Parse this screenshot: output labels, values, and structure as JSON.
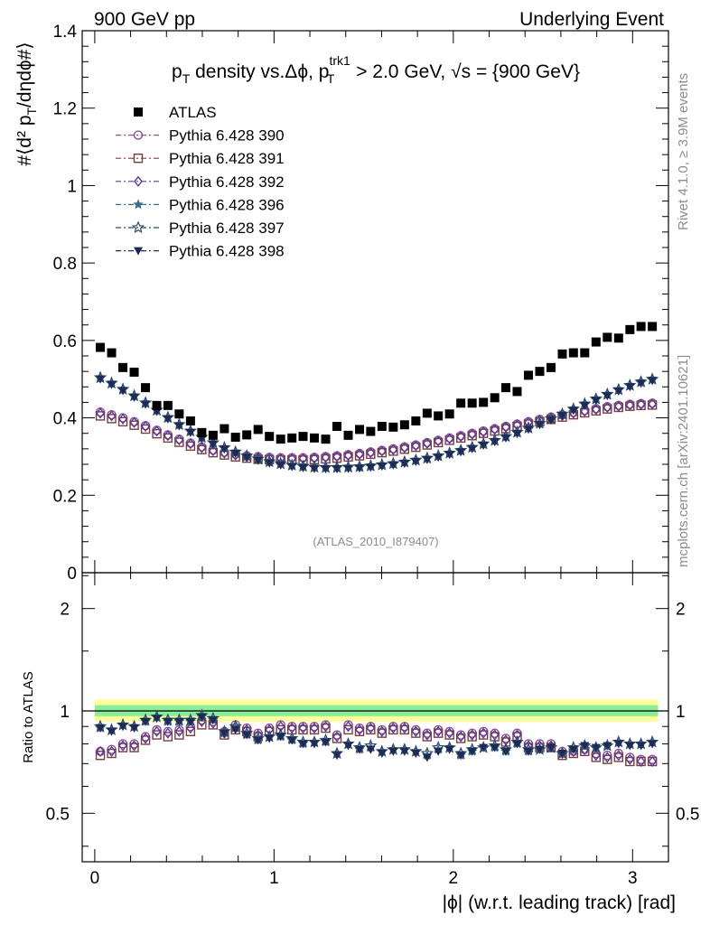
{
  "header": {
    "left": "900 GeV pp",
    "right": "Underlying Event"
  },
  "side_labels": {
    "rivet": "Rivet 4.1.0, ≥ 3.9M events",
    "mcplots": "mcplots.cern.ch [arXiv:2401.10621]"
  },
  "watermark": "(ATLAS_2010_I879407)",
  "title": "p_T density vs.Δϕ, p_T^trk1 > 2.0 GeV, √s = {900 GeV}",
  "chart_data": [
    {
      "type": "scatter",
      "panel": "main",
      "ylabel": "#⟨d² p_T/dηdϕ#⟩",
      "xlim": [
        -0.07,
        3.2
      ],
      "ylim": [
        0,
        1.4
      ],
      "yticks": [
        0,
        0.2,
        0.4,
        0.6,
        0.8,
        1,
        1.2,
        1.4
      ],
      "ytick_labels": [
        "0",
        "0.2",
        "0.4",
        "0.6",
        "0.8",
        "1",
        "1.2",
        "1.4"
      ],
      "legend_position": "top-left",
      "x": [
        0.031,
        0.094,
        0.157,
        0.22,
        0.283,
        0.346,
        0.408,
        0.471,
        0.534,
        0.597,
        0.66,
        0.723,
        0.785,
        0.848,
        0.911,
        0.974,
        1.037,
        1.1,
        1.162,
        1.225,
        1.288,
        1.351,
        1.414,
        1.477,
        1.539,
        1.602,
        1.665,
        1.728,
        1.791,
        1.854,
        1.916,
        1.979,
        2.042,
        2.105,
        2.168,
        2.231,
        2.293,
        2.356,
        2.419,
        2.482,
        2.545,
        2.608,
        2.67,
        2.733,
        2.796,
        2.859,
        2.922,
        2.985,
        3.047,
        3.11
      ],
      "series": [
        {
          "name": "ATLAS",
          "marker": "filled-square",
          "color": "#000000",
          "values": [
            0.582,
            0.568,
            0.53,
            0.518,
            0.478,
            0.432,
            0.432,
            0.41,
            0.392,
            0.362,
            0.355,
            0.372,
            0.35,
            0.356,
            0.37,
            0.352,
            0.345,
            0.348,
            0.352,
            0.348,
            0.345,
            0.378,
            0.355,
            0.37,
            0.365,
            0.378,
            0.376,
            0.382,
            0.392,
            0.412,
            0.405,
            0.41,
            0.438,
            0.438,
            0.44,
            0.452,
            0.478,
            0.468,
            0.51,
            0.52,
            0.53,
            0.565,
            0.568,
            0.568,
            0.596,
            0.608,
            0.606,
            0.628,
            0.636,
            0.636
          ]
        },
        {
          "name": "Pythia 6.428 390",
          "marker": "open-circle",
          "color": "#8e4e9c",
          "values": [
            0.415,
            0.408,
            0.4,
            0.39,
            0.38,
            0.368,
            0.356,
            0.345,
            0.335,
            0.325,
            0.317,
            0.311,
            0.306,
            0.302,
            0.3,
            0.298,
            0.297,
            0.297,
            0.297,
            0.298,
            0.3,
            0.302,
            0.305,
            0.308,
            0.312,
            0.316,
            0.32,
            0.325,
            0.33,
            0.336,
            0.342,
            0.348,
            0.354,
            0.36,
            0.366,
            0.372,
            0.378,
            0.384,
            0.39,
            0.396,
            0.402,
            0.408,
            0.414,
            0.419,
            0.424,
            0.429,
            0.432,
            0.435,
            0.437,
            0.438
          ]
        },
        {
          "name": "Pythia 6.428 391",
          "marker": "open-square",
          "color": "#7a3d3d",
          "values": [
            0.405,
            0.398,
            0.39,
            0.381,
            0.371,
            0.359,
            0.348,
            0.337,
            0.327,
            0.318,
            0.31,
            0.304,
            0.299,
            0.296,
            0.293,
            0.292,
            0.291,
            0.291,
            0.291,
            0.292,
            0.294,
            0.296,
            0.299,
            0.302,
            0.306,
            0.31,
            0.314,
            0.319,
            0.324,
            0.33,
            0.336,
            0.342,
            0.348,
            0.354,
            0.36,
            0.366,
            0.372,
            0.378,
            0.384,
            0.39,
            0.396,
            0.402,
            0.408,
            0.413,
            0.418,
            0.423,
            0.427,
            0.43,
            0.432,
            0.433
          ]
        },
        {
          "name": "Pythia 6.428 392",
          "marker": "open-diamond",
          "color": "#5b3a96",
          "values": [
            0.412,
            0.405,
            0.397,
            0.388,
            0.378,
            0.366,
            0.354,
            0.343,
            0.333,
            0.323,
            0.315,
            0.309,
            0.304,
            0.3,
            0.298,
            0.296,
            0.295,
            0.295,
            0.295,
            0.296,
            0.298,
            0.3,
            0.303,
            0.306,
            0.31,
            0.314,
            0.318,
            0.323,
            0.328,
            0.334,
            0.34,
            0.346,
            0.352,
            0.358,
            0.364,
            0.37,
            0.376,
            0.382,
            0.388,
            0.394,
            0.4,
            0.406,
            0.412,
            0.417,
            0.422,
            0.427,
            0.43,
            0.433,
            0.435,
            0.436
          ]
        },
        {
          "name": "Pythia 6.428 396",
          "marker": "filled-star",
          "color": "#3f6b8e",
          "values": [
            0.502,
            0.488,
            0.472,
            0.455,
            0.437,
            0.418,
            0.399,
            0.381,
            0.364,
            0.348,
            0.334,
            0.321,
            0.31,
            0.3,
            0.292,
            0.285,
            0.28,
            0.276,
            0.273,
            0.271,
            0.27,
            0.27,
            0.271,
            0.272,
            0.274,
            0.277,
            0.28,
            0.284,
            0.289,
            0.294,
            0.3,
            0.307,
            0.314,
            0.322,
            0.331,
            0.34,
            0.35,
            0.361,
            0.372,
            0.384,
            0.396,
            0.408,
            0.421,
            0.434,
            0.447,
            0.459,
            0.471,
            0.482,
            0.491,
            0.498
          ]
        },
        {
          "name": "Pythia 6.428 397",
          "marker": "open-star",
          "color": "#2d4b6e",
          "values": [
            0.504,
            0.49,
            0.474,
            0.457,
            0.439,
            0.42,
            0.401,
            0.383,
            0.366,
            0.35,
            0.336,
            0.323,
            0.312,
            0.302,
            0.294,
            0.287,
            0.282,
            0.278,
            0.275,
            0.273,
            0.272,
            0.272,
            0.273,
            0.274,
            0.276,
            0.279,
            0.282,
            0.286,
            0.291,
            0.296,
            0.302,
            0.309,
            0.316,
            0.324,
            0.333,
            0.342,
            0.352,
            0.363,
            0.374,
            0.386,
            0.398,
            0.41,
            0.423,
            0.436,
            0.449,
            0.461,
            0.473,
            0.484,
            0.493,
            0.5
          ]
        },
        {
          "name": "Pythia 6.428 398",
          "marker": "filled-triangle-down",
          "color": "#1e2b57",
          "values": [
            0.5,
            0.486,
            0.47,
            0.453,
            0.435,
            0.416,
            0.397,
            0.379,
            0.362,
            0.346,
            0.332,
            0.319,
            0.308,
            0.298,
            0.29,
            0.283,
            0.278,
            0.274,
            0.271,
            0.269,
            0.268,
            0.268,
            0.269,
            0.27,
            0.272,
            0.275,
            0.278,
            0.282,
            0.287,
            0.292,
            0.298,
            0.305,
            0.312,
            0.32,
            0.329,
            0.338,
            0.348,
            0.359,
            0.37,
            0.382,
            0.394,
            0.406,
            0.419,
            0.432,
            0.445,
            0.457,
            0.469,
            0.48,
            0.489,
            0.496
          ]
        }
      ]
    },
    {
      "type": "scatter",
      "panel": "ratio",
      "ylabel": "Ratio to ATLAS",
      "xlabel": "|ϕ| (w.r.t. leading track) [rad]",
      "xlim": [
        -0.07,
        3.2
      ],
      "xticks": [
        0,
        1,
        2,
        3
      ],
      "xtick_labels": [
        "0",
        "1",
        "2",
        "3"
      ],
      "ylim": [
        0.36,
        2.55
      ],
      "ylog": true,
      "yticks": [
        0.5,
        1,
        2
      ],
      "ytick_labels": [
        "0.5",
        "1",
        "2"
      ],
      "bands": [
        {
          "name": "stat+syst",
          "color": "#ffff99",
          "lo": 0.93,
          "hi": 1.08
        },
        {
          "name": "stat",
          "color": "#88ee99",
          "lo": 0.965,
          "hi": 1.04
        }
      ],
      "ratios": [
        {
          "name": "Pythia 6.428 390",
          "values": [
            0.76,
            0.77,
            0.8,
            0.8,
            0.84,
            0.88,
            0.87,
            0.88,
            0.9,
            0.94,
            0.93,
            0.87,
            0.91,
            0.89,
            0.86,
            0.89,
            0.91,
            0.9,
            0.9,
            0.9,
            0.91,
            0.85,
            0.91,
            0.89,
            0.9,
            0.88,
            0.9,
            0.9,
            0.88,
            0.86,
            0.88,
            0.87,
            0.85,
            0.86,
            0.87,
            0.86,
            0.83,
            0.86,
            0.8,
            0.8,
            0.8,
            0.76,
            0.76,
            0.77,
            0.75,
            0.74,
            0.75,
            0.73,
            0.72,
            0.72
          ]
        },
        {
          "name": "Pythia 6.428 391",
          "values": [
            0.74,
            0.75,
            0.78,
            0.78,
            0.82,
            0.85,
            0.84,
            0.85,
            0.87,
            0.91,
            0.91,
            0.85,
            0.88,
            0.87,
            0.84,
            0.87,
            0.88,
            0.88,
            0.88,
            0.88,
            0.89,
            0.83,
            0.88,
            0.87,
            0.88,
            0.86,
            0.88,
            0.88,
            0.86,
            0.84,
            0.86,
            0.85,
            0.83,
            0.84,
            0.85,
            0.84,
            0.81,
            0.84,
            0.78,
            0.78,
            0.78,
            0.74,
            0.75,
            0.76,
            0.73,
            0.72,
            0.73,
            0.71,
            0.71,
            0.71
          ]
        },
        {
          "name": "Pythia 6.428 392",
          "values": [
            0.76,
            0.76,
            0.79,
            0.79,
            0.83,
            0.87,
            0.86,
            0.87,
            0.89,
            0.93,
            0.92,
            0.86,
            0.9,
            0.88,
            0.85,
            0.88,
            0.9,
            0.89,
            0.89,
            0.89,
            0.9,
            0.84,
            0.9,
            0.88,
            0.89,
            0.87,
            0.89,
            0.89,
            0.87,
            0.85,
            0.87,
            0.86,
            0.84,
            0.85,
            0.86,
            0.85,
            0.82,
            0.85,
            0.79,
            0.79,
            0.79,
            0.75,
            0.76,
            0.77,
            0.74,
            0.73,
            0.74,
            0.72,
            0.71,
            0.71
          ]
        },
        {
          "name": "Pythia 6.428 396",
          "values": [
            0.89,
            0.88,
            0.91,
            0.9,
            0.93,
            0.96,
            0.93,
            0.93,
            0.93,
            0.96,
            0.94,
            0.86,
            0.89,
            0.85,
            0.82,
            0.84,
            0.84,
            0.82,
            0.8,
            0.81,
            0.81,
            0.75,
            0.8,
            0.77,
            0.78,
            0.76,
            0.77,
            0.77,
            0.76,
            0.74,
            0.77,
            0.78,
            0.74,
            0.76,
            0.78,
            0.78,
            0.76,
            0.8,
            0.76,
            0.77,
            0.78,
            0.75,
            0.77,
            0.79,
            0.78,
            0.79,
            0.81,
            0.8,
            0.8,
            0.81
          ]
        },
        {
          "name": "Pythia 6.428 397",
          "values": [
            0.9,
            0.88,
            0.91,
            0.9,
            0.94,
            0.96,
            0.94,
            0.94,
            0.94,
            0.97,
            0.95,
            0.87,
            0.9,
            0.86,
            0.83,
            0.84,
            0.85,
            0.83,
            0.81,
            0.81,
            0.82,
            0.75,
            0.8,
            0.78,
            0.79,
            0.76,
            0.77,
            0.77,
            0.76,
            0.75,
            0.78,
            0.78,
            0.75,
            0.77,
            0.78,
            0.79,
            0.77,
            0.81,
            0.77,
            0.77,
            0.78,
            0.75,
            0.78,
            0.79,
            0.78,
            0.79,
            0.81,
            0.8,
            0.8,
            0.81
          ]
        },
        {
          "name": "Pythia 6.428 398",
          "values": [
            0.89,
            0.87,
            0.9,
            0.89,
            0.93,
            0.95,
            0.93,
            0.93,
            0.93,
            0.96,
            0.94,
            0.86,
            0.88,
            0.85,
            0.82,
            0.83,
            0.84,
            0.82,
            0.8,
            0.8,
            0.81,
            0.74,
            0.79,
            0.77,
            0.77,
            0.75,
            0.76,
            0.76,
            0.75,
            0.73,
            0.76,
            0.77,
            0.74,
            0.76,
            0.78,
            0.78,
            0.76,
            0.8,
            0.76,
            0.77,
            0.78,
            0.75,
            0.77,
            0.79,
            0.78,
            0.79,
            0.8,
            0.79,
            0.79,
            0.8
          ]
        }
      ]
    }
  ]
}
